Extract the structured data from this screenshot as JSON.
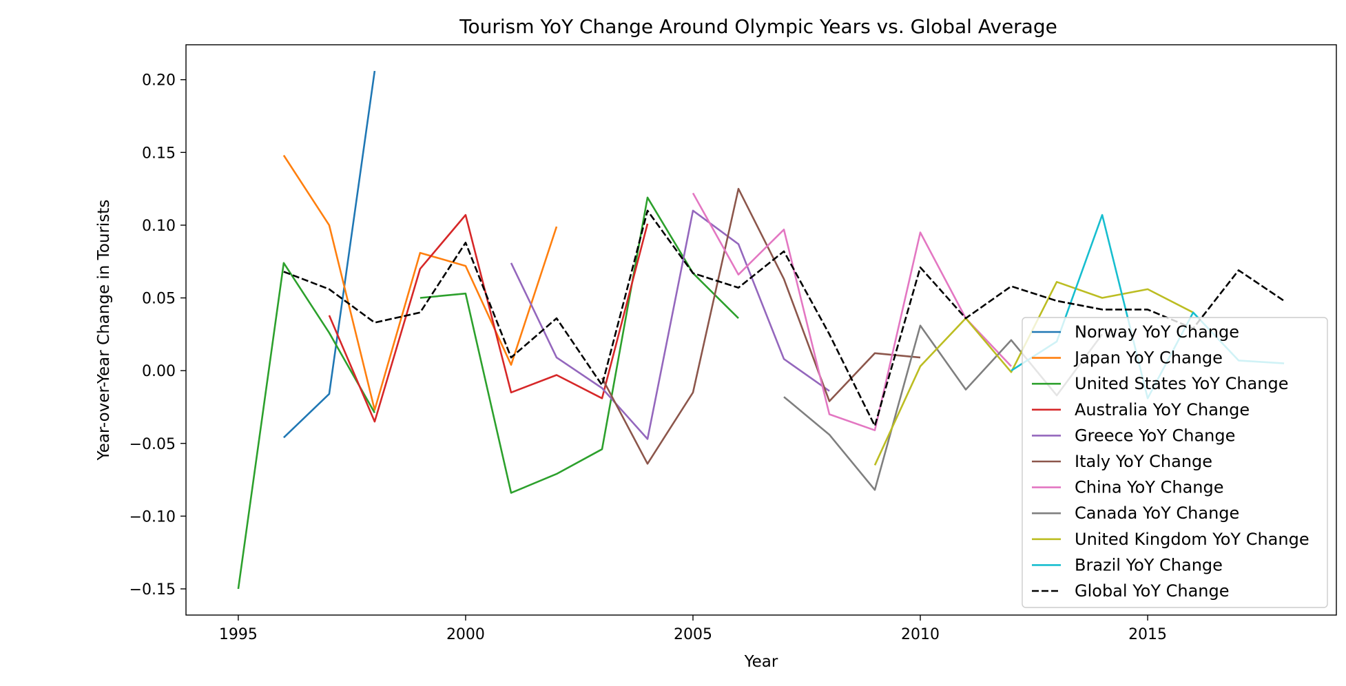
{
  "chart_data": {
    "type": "line",
    "title": "Tourism YoY Change Around Olympic Years vs. Global Average",
    "xlabel": "Year",
    "ylabel": "Year-over-Year Change in Tourists",
    "xlim": [
      1993.85,
      2019.15
    ],
    "ylim": [
      -0.168,
      0.224
    ],
    "xticks": [
      1995,
      2000,
      2005,
      2010,
      2015
    ],
    "yticks": [
      -0.15,
      -0.1,
      -0.05,
      0.0,
      0.05,
      0.1,
      0.15,
      0.2
    ],
    "ytick_labels": [
      "−0.15",
      "−0.10",
      "−0.05",
      "0.00",
      "0.05",
      "0.10",
      "0.15",
      "0.20"
    ],
    "grid": false,
    "legend_position": "lower-right",
    "series": [
      {
        "name": "Norway YoY Change",
        "color": "#1f77b4",
        "style": "solid",
        "x": [
          1996,
          1997,
          1998
        ],
        "y": [
          -0.046,
          -0.016,
          0.206
        ]
      },
      {
        "name": "Japan YoY Change",
        "color": "#ff7f0e",
        "style": "solid",
        "x": [
          1996,
          1997,
          1998,
          1999,
          2000,
          2001,
          2002
        ],
        "y": [
          0.148,
          0.1,
          -0.027,
          0.081,
          0.072,
          0.004,
          0.099
        ]
      },
      {
        "name": "United States YoY Change",
        "color": "#2ca02c",
        "style": "solid",
        "segments": [
          {
            "x": [
              1995,
              1996,
              1997,
              1998
            ],
            "y": [
              -0.15,
              0.074,
              0.026,
              -0.029
            ]
          },
          {
            "x": [
              1999,
              2000,
              2001,
              2002,
              2003,
              2004,
              2005,
              2006
            ],
            "y": [
              0.05,
              0.053,
              -0.084,
              -0.071,
              -0.054,
              0.119,
              0.067,
              0.036
            ]
          }
        ]
      },
      {
        "name": "Australia YoY Change",
        "color": "#d62728",
        "style": "solid",
        "x": [
          1997,
          1998,
          1999,
          2000,
          2001,
          2002,
          2003,
          2004
        ],
        "y": [
          0.038,
          -0.035,
          0.07,
          0.107,
          -0.015,
          -0.003,
          -0.019,
          0.101
        ]
      },
      {
        "name": "Greece YoY Change",
        "color": "#9467bd",
        "style": "solid",
        "segments": [
          {
            "x": [
              2001,
              2002,
              2003,
              2004,
              2005,
              2006,
              2007,
              2008
            ],
            "y": [
              0.074,
              0.009,
              -0.012,
              -0.047,
              0.11,
              0.087,
              0.008,
              -0.014
            ]
          }
        ]
      },
      {
        "name": "Italy YoY Change",
        "color": "#8c564b",
        "style": "solid",
        "x": [
          2003,
          2004,
          2005,
          2006,
          2007,
          2008,
          2009,
          2010
        ],
        "y": [
          -0.005,
          -0.064,
          -0.015,
          0.125,
          0.063,
          -0.021,
          0.012,
          0.009
        ]
      },
      {
        "name": "China YoY Change",
        "color": "#e377c2",
        "style": "solid",
        "x": [
          2005,
          2006,
          2007,
          2008,
          2009,
          2010,
          2011,
          2012
        ],
        "y": [
          0.122,
          0.066,
          0.097,
          -0.03,
          -0.041,
          0.095,
          0.036,
          0.003
        ]
      },
      {
        "name": "Canada YoY Change",
        "color": "#7f7f7f",
        "style": "solid",
        "x": [
          2007,
          2008,
          2009,
          2010,
          2011,
          2012,
          2013,
          2014
        ],
        "y": [
          -0.018,
          -0.044,
          -0.082,
          0.031,
          -0.013,
          0.021,
          -0.017,
          0.025
        ]
      },
      {
        "name": "United Kingdom YoY Change",
        "color": "#bcbd22",
        "style": "solid",
        "x": [
          2009,
          2010,
          2011,
          2012,
          2013,
          2014,
          2015,
          2016
        ],
        "y": [
          -0.065,
          0.003,
          0.036,
          -0.001,
          0.061,
          0.05,
          0.056,
          0.04
        ]
      },
      {
        "name": "Brazil YoY Change",
        "color": "#17becf",
        "style": "solid",
        "x": [
          2012,
          2013,
          2014,
          2015,
          2016,
          2017,
          2018
        ],
        "y": [
          0.0,
          0.02,
          0.107,
          -0.019,
          0.04,
          0.007,
          0.005
        ]
      },
      {
        "name": "Global YoY Change",
        "color": "#000000",
        "style": "dashed",
        "x": [
          1996,
          1997,
          1998,
          1999,
          2000,
          2001,
          2002,
          2003,
          2004,
          2005,
          2006,
          2007,
          2008,
          2009,
          2010,
          2011,
          2012,
          2013,
          2014,
          2015,
          2016,
          2017,
          2018
        ],
        "y": [
          0.068,
          0.056,
          0.033,
          0.04,
          0.088,
          0.009,
          0.036,
          -0.01,
          0.11,
          0.067,
          0.057,
          0.082,
          0.025,
          -0.038,
          0.071,
          0.036,
          0.058,
          0.048,
          0.042,
          0.042,
          0.029,
          0.069,
          0.048
        ]
      }
    ]
  }
}
